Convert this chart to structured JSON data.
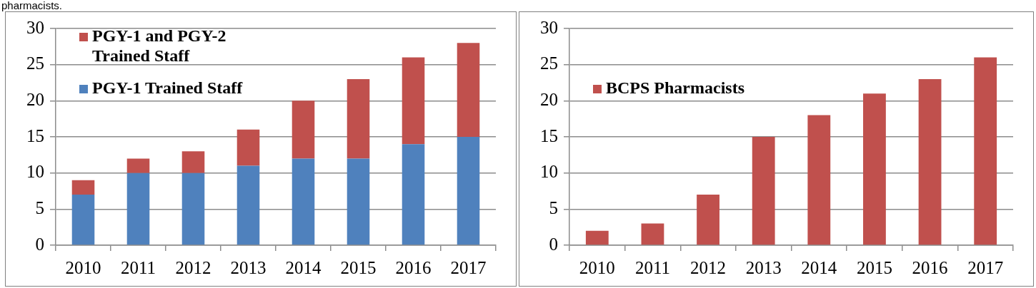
{
  "chart_data": [
    {
      "type": "bar",
      "stacked": true,
      "categories": [
        "2010",
        "2011",
        "2012",
        "2013",
        "2014",
        "2015",
        "2016",
        "2017"
      ],
      "series": [
        {
          "name": "PGY-1 Trained Staff",
          "color": "#4f81bd",
          "values": [
            7,
            10,
            10,
            11,
            12,
            12,
            14,
            15
          ]
        },
        {
          "name": "PGY-1 and PGY-2 Trained Staff",
          "color": "#c0504d",
          "values": [
            2,
            2,
            3,
            5,
            8,
            11,
            12,
            13
          ]
        }
      ],
      "ylim": [
        0,
        30
      ],
      "yticks": [
        0,
        5,
        10,
        15,
        20,
        25,
        30
      ],
      "grid": "y",
      "legend": "top left",
      "annotations": [
        "pharmacists."
      ]
    },
    {
      "type": "bar",
      "categories": [
        "2010",
        "2011",
        "2012",
        "2013",
        "2014",
        "2015",
        "2016",
        "2017"
      ],
      "series": [
        {
          "name": "BCPS Pharmacists",
          "color": "#c0504d",
          "values": [
            2,
            3,
            7,
            15,
            18,
            21,
            23,
            26
          ]
        }
      ],
      "ylim": [
        0,
        30
      ],
      "yticks": [
        0,
        5,
        10,
        15,
        20,
        25,
        30
      ],
      "grid": "y",
      "legend": "top left"
    }
  ]
}
